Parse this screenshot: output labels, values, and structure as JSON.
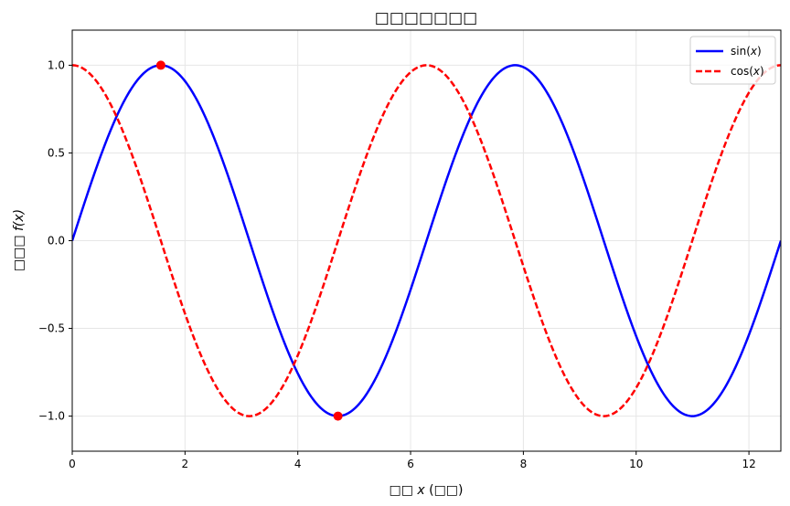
{
  "chart_data": {
    "type": "line",
    "title": "□□□□□□□",
    "xlabel_prefix": "□□ ",
    "xlabel_var": "x",
    "xlabel_suffix": " (□□)",
    "ylabel_prefix": "□□□ ",
    "ylabel_var": "f(x)",
    "xlim": [
      0,
      12.566
    ],
    "ylim": [
      -1.2,
      1.2
    ],
    "xticks": [
      0,
      2,
      4,
      6,
      8,
      10,
      12
    ],
    "xtick_labels": [
      "0",
      "2",
      "4",
      "6",
      "8",
      "10",
      "12"
    ],
    "yticks": [
      -1.0,
      -0.5,
      0.0,
      0.5,
      1.0
    ],
    "ytick_labels": [
      "−1.0",
      "−0.5",
      "0.0",
      "0.5",
      "1.0"
    ],
    "grid": true,
    "legend_position": "top-right",
    "series": [
      {
        "name": "sin(x)",
        "name_prefix": "sin(",
        "name_var": "x",
        "name_suffix": ")",
        "function": "sin",
        "x_range": [
          0,
          12.566
        ],
        "color": "#0000ff",
        "line_style": "solid",
        "x": [
          0,
          0.785,
          1.571,
          2.356,
          3.142,
          3.927,
          4.712,
          5.498,
          6.283,
          7.069,
          7.854,
          8.639,
          9.425,
          10.21,
          10.996,
          11.781,
          12.566
        ],
        "values": [
          0,
          0.707,
          1.0,
          0.707,
          0,
          -0.707,
          -1.0,
          -0.707,
          0,
          0.707,
          1.0,
          0.707,
          0,
          -0.707,
          -1.0,
          -0.707,
          0
        ]
      },
      {
        "name": "cos(x)",
        "name_prefix": "cos(",
        "name_var": "x",
        "name_suffix": ")",
        "function": "cos",
        "x_range": [
          0,
          12.566
        ],
        "color": "#ff0000",
        "line_style": "dashed",
        "x": [
          0,
          0.785,
          1.571,
          2.356,
          3.142,
          3.927,
          4.712,
          5.498,
          6.283,
          7.069,
          7.854,
          8.639,
          9.425,
          10.21,
          10.996,
          11.781,
          12.566
        ],
        "values": [
          1.0,
          0.707,
          0,
          -0.707,
          -1.0,
          -0.707,
          0,
          0.707,
          1.0,
          0.707,
          0,
          -0.707,
          -1.0,
          -0.707,
          0,
          0.707,
          1.0
        ]
      }
    ],
    "highlight_points": [
      {
        "x": 1.571,
        "y": 1.0,
        "color": "#ff0000"
      },
      {
        "x": 4.712,
        "y": -1.0,
        "color": "#ff0000"
      }
    ]
  }
}
